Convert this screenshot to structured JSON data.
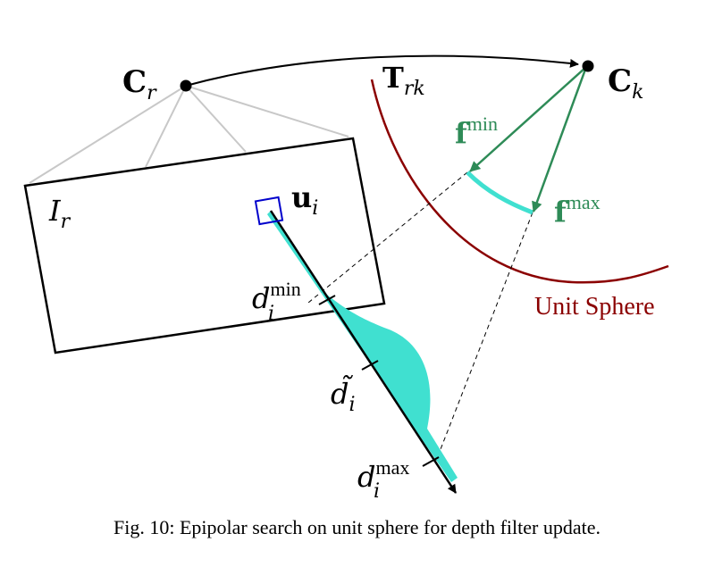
{
  "labels": {
    "cr": "C",
    "cr_sub": "r",
    "ck": "C",
    "ck_sub": "k",
    "trk": "T",
    "trk_sub": "rk",
    "ir": "I",
    "ir_sub": "r",
    "ui": "u",
    "ui_sub": "i",
    "fmin": "f",
    "fmin_sup": "min",
    "fmax": "f",
    "fmax_sup": "max",
    "dmin": "d",
    "dmin_sub": "i",
    "dmin_sup": "min",
    "dtilde": "d̃",
    "dtilde_sub": "i",
    "dmax": "d",
    "dmax_sub": "i",
    "dmax_sup": "max",
    "unit_sphere": "Unit Sphere"
  },
  "caption": "Fig. 10: Epipolar search on unit sphere for depth filter update.",
  "colors": {
    "green": "#2e8b57",
    "teal": "#40e0d0",
    "dark_red": "#8b0000",
    "blue": "#0000cc",
    "gray": "#c8c8c8"
  }
}
